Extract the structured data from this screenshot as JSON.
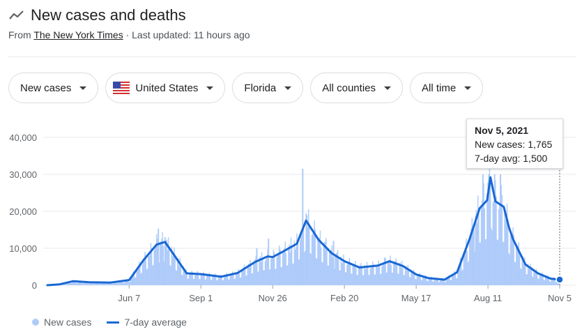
{
  "header": {
    "title": "New cases and deaths",
    "icon": "trend-line-icon",
    "source_prefix": "From ",
    "source_name": "The New York Times",
    "source_suffix": " · Last updated: 11 hours ago"
  },
  "filters": [
    {
      "label": "New cases",
      "icon": null
    },
    {
      "label": "United States",
      "icon": "us-flag-icon"
    },
    {
      "label": "Florida",
      "icon": null
    },
    {
      "label": "All counties",
      "icon": null
    },
    {
      "label": "All time",
      "icon": null
    }
  ],
  "tooltip": {
    "date": "Nov 5, 2021",
    "new_cases": "New cases: 1,765",
    "avg": "7-day avg: 1,500"
  },
  "legend": {
    "bars": "New cases",
    "line": "7-day average"
  },
  "colors": {
    "bar": "#aecbfa",
    "line": "#1967d2",
    "grid": "#e8eaed",
    "axis_text": "#5f6368"
  },
  "chart_data": {
    "type": "bar",
    "x_tick_labels": [
      "Jun 7",
      "Sep 1",
      "Nov 26",
      "Feb 20",
      "May 17",
      "Aug 11",
      "Nov 5"
    ],
    "y_tick_labels": [
      "0",
      "10,000",
      "20,000",
      "30,000",
      "40,000"
    ],
    "ylim": [
      0,
      40000
    ],
    "grid": true,
    "legend_position": "bottom-left",
    "series": [
      {
        "name": "New cases",
        "type": "bar"
      },
      {
        "name": "7-day average",
        "type": "line"
      }
    ],
    "seven_day_average_points": [
      [
        "2020-03-01",
        0
      ],
      [
        "2020-03-15",
        200
      ],
      [
        "2020-04-01",
        1100
      ],
      [
        "2020-04-20",
        800
      ],
      [
        "2020-05-15",
        700
      ],
      [
        "2020-06-07",
        1400
      ],
      [
        "2020-06-25",
        7000
      ],
      [
        "2020-07-10",
        11000
      ],
      [
        "2020-07-20",
        11700
      ],
      [
        "2020-08-05",
        6500
      ],
      [
        "2020-08-15",
        3200
      ],
      [
        "2020-09-01",
        3000
      ],
      [
        "2020-09-25",
        2300
      ],
      [
        "2020-10-15",
        3300
      ],
      [
        "2020-11-05",
        6300
      ],
      [
        "2020-11-20",
        7800
      ],
      [
        "2020-11-26",
        7600
      ],
      [
        "2020-12-10",
        9300
      ],
      [
        "2020-12-25",
        11200
      ],
      [
        "2021-01-05",
        17500
      ],
      [
        "2021-01-20",
        12300
      ],
      [
        "2021-02-05",
        8600
      ],
      [
        "2021-02-20",
        6500
      ],
      [
        "2021-03-10",
        4800
      ],
      [
        "2021-04-01",
        5300
      ],
      [
        "2021-04-15",
        6500
      ],
      [
        "2021-05-01",
        5200
      ],
      [
        "2021-05-17",
        2900
      ],
      [
        "2021-06-01",
        1900
      ],
      [
        "2021-06-20",
        1500
      ],
      [
        "2021-07-05",
        3500
      ],
      [
        "2021-07-20",
        12500
      ],
      [
        "2021-08-01",
        20800
      ],
      [
        "2021-08-10",
        23000
      ],
      [
        "2021-08-14",
        29200
      ],
      [
        "2021-08-20",
        22700
      ],
      [
        "2021-08-30",
        21200
      ],
      [
        "2021-09-05",
        15800
      ],
      [
        "2021-09-10",
        12500
      ],
      [
        "2021-09-25",
        5600
      ],
      [
        "2021-10-10",
        3200
      ],
      [
        "2021-10-25",
        1800
      ],
      [
        "2021-11-05",
        1500
      ]
    ],
    "new_case_bars": [
      [
        "2020-07-12",
        15300
      ],
      [
        "2020-07-20",
        13000
      ],
      [
        "2020-11-07",
        10000
      ],
      [
        "2020-11-21",
        12600
      ],
      [
        "2020-12-04",
        9800
      ],
      [
        "2020-12-26",
        11800
      ],
      [
        "2021-01-01",
        31500
      ],
      [
        "2021-01-06",
        19000
      ],
      [
        "2021-01-15",
        15500
      ],
      [
        "2021-02-07",
        12000
      ],
      [
        "2021-04-10",
        7400
      ],
      [
        "2021-07-25",
        16500
      ],
      [
        "2021-08-05",
        30000
      ],
      [
        "2021-08-12",
        30000
      ],
      [
        "2021-08-19",
        30000
      ],
      [
        "2021-08-26",
        30000
      ],
      [
        "2021-09-02",
        17000
      ],
      [
        "2021-09-09",
        14000
      ],
      [
        "2021-09-16",
        10000
      ],
      [
        "2021-10-02",
        5000
      ],
      [
        "2021-11-05",
        1765
      ]
    ]
  }
}
